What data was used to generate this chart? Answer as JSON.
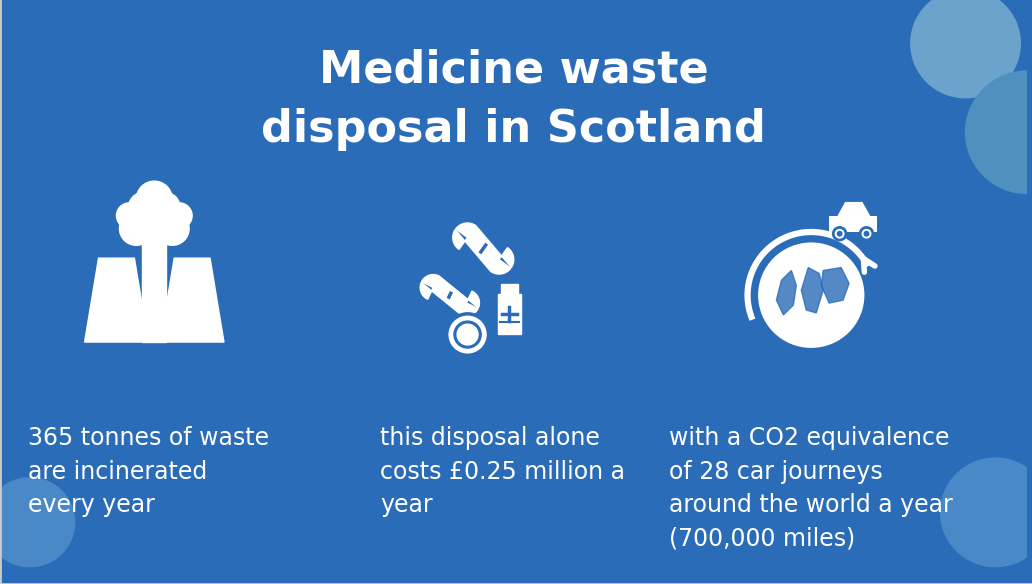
{
  "background_color": "#2B6CB8",
  "title_line1": "Medicine waste",
  "title_line2": "disposal in Scotland",
  "title_color": "#FFFFFF",
  "title_fontsize": 32,
  "title_fontweight": "bold",
  "text1": "365 tonnes of waste\nare incinerated\nevery year",
  "text2": "this disposal alone\ncosts £0.25 million a\nyear",
  "text3": "with a CO2 equivalence\nof 28 car journeys\naround the world a year\n(700,000 miles)",
  "text_color": "#FFFFFF",
  "text_fontsize": 17,
  "icon_color": "#FFFFFF",
  "circle_color_large": "#4A89C8",
  "circle_color_small": "#5B9BD5",
  "border_color": "#CCCCCC",
  "border_width": 2
}
